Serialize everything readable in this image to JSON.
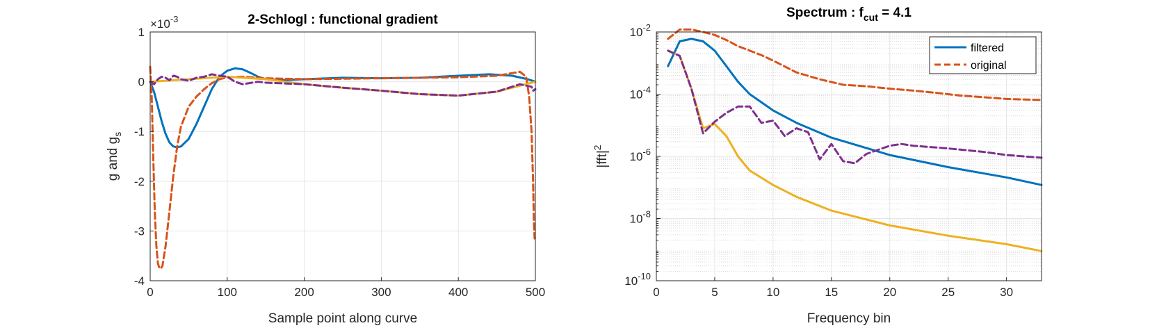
{
  "chart_data": [
    {
      "type": "line",
      "title": "2-Schlogl : functional gradient",
      "xlabel": "Sample point along curve",
      "ylabel_main": "g and g",
      "ylabel_sub": "s",
      "exponent_base": "×10",
      "exponent_power": "-3",
      "xlim": [
        0,
        500
      ],
      "ylim": [
        -4,
        1
      ],
      "xticks": [
        0,
        100,
        200,
        300,
        400,
        500
      ],
      "xtick_labels": [
        "0",
        "100",
        "200",
        "300",
        "400",
        "500"
      ],
      "yticks": [
        -4,
        -3,
        -2,
        -1,
        0,
        1
      ],
      "ytick_labels": [
        "-4",
        "-3",
        "-2",
        "-1",
        "0",
        "1"
      ],
      "grid": true,
      "colors": {
        "blue": "#0072BD",
        "orange": "#D95319",
        "yellow": "#EDB120",
        "purple": "#7E2F8E"
      },
      "series": [
        {
          "style": "solid",
          "color": "#0072BD",
          "x": [
            0,
            5,
            10,
            15,
            20,
            25,
            30,
            35,
            40,
            50,
            60,
            70,
            80,
            90,
            100,
            110,
            120,
            130,
            140,
            150,
            170,
            200,
            250,
            300,
            350,
            400,
            440,
            470,
            490,
            500
          ],
          "y": [
            0,
            -0.2,
            -0.5,
            -0.8,
            -1.05,
            -1.22,
            -1.3,
            -1.32,
            -1.3,
            -1.15,
            -0.85,
            -0.5,
            -0.15,
            0.1,
            0.22,
            0.27,
            0.25,
            0.18,
            0.1,
            0.05,
            0.03,
            0.05,
            0.08,
            0.07,
            0.08,
            0.12,
            0.15,
            0.12,
            0.05,
            0
          ]
        },
        {
          "style": "dashed",
          "color": "#D95319",
          "x": [
            0,
            2,
            4,
            6,
            8,
            10,
            12,
            14,
            16,
            18,
            20,
            25,
            30,
            35,
            40,
            50,
            60,
            70,
            80,
            90,
            100,
            120,
            150,
            200,
            250,
            300,
            350,
            400,
            450,
            480,
            488,
            492,
            495,
            497,
            498,
            499,
            500
          ],
          "y": [
            0.3,
            -0.3,
            -1.5,
            -2.6,
            -3.3,
            -3.65,
            -3.75,
            -3.75,
            -3.7,
            -3.5,
            -3.3,
            -2.6,
            -1.9,
            -1.3,
            -0.9,
            -0.5,
            -0.3,
            -0.15,
            -0.03,
            0.05,
            0.09,
            0.1,
            0.07,
            0.05,
            0.06,
            0.07,
            0.08,
            0.09,
            0.12,
            0.2,
            0.1,
            -0.3,
            -1.0,
            -2.0,
            -2.8,
            -3.15,
            -3.1
          ]
        },
        {
          "style": "solid",
          "color": "#EDB120",
          "x": [
            0,
            50,
            100,
            150,
            200,
            250,
            300,
            350,
            400,
            450,
            480,
            500
          ],
          "y": [
            0,
            0.05,
            0.1,
            0.05,
            -0.05,
            -0.12,
            -0.18,
            -0.25,
            -0.28,
            -0.2,
            -0.08,
            0
          ]
        },
        {
          "style": "dashed",
          "color": "#7E2F8E",
          "x": [
            0,
            5,
            10,
            15,
            20,
            25,
            30,
            35,
            40,
            50,
            60,
            70,
            80,
            90,
            100,
            110,
            120,
            140,
            150,
            200,
            250,
            300,
            350,
            400,
            450,
            480,
            495,
            497,
            500
          ],
          "y": [
            0,
            -0.05,
            0.05,
            0.1,
            0.08,
            0.03,
            0.12,
            0.1,
            0.05,
            0.02,
            0.08,
            0.1,
            0.15,
            0.12,
            0.1,
            0,
            -0.05,
            0,
            -0.02,
            -0.05,
            -0.12,
            -0.18,
            -0.25,
            -0.28,
            -0.2,
            -0.05,
            -0.1,
            -0.18,
            -0.15
          ]
        }
      ]
    },
    {
      "type": "line",
      "title_main": "Spectrum : f",
      "title_sub": "cut",
      "title_tail": " = 4.1",
      "xlabel": "Frequency bin",
      "ylabel_main": "|fft|",
      "ylabel_sup": "2",
      "yscale": "log",
      "xlim": [
        0,
        33
      ],
      "ylim_exponent": [
        -10,
        -2
      ],
      "xticks": [
        0,
        5,
        10,
        15,
        20,
        25,
        30
      ],
      "xtick_labels": [
        "0",
        "5",
        "10",
        "15",
        "20",
        "25",
        "30"
      ],
      "ytick_exponents": [
        -10,
        -8,
        -6,
        -4,
        -2
      ],
      "ytick_exponent_labels": [
        "-10",
        "-8",
        "-6",
        "-4",
        "-2"
      ],
      "ytick_base": "10",
      "grid": true,
      "legend_position": "top-right",
      "legend": [
        {
          "name": "filtered",
          "style": "solid",
          "color": "#0072BD"
        },
        {
          "name": "original",
          "style": "dashed",
          "color": "#D95319"
        }
      ],
      "series": [
        {
          "style": "solid",
          "color": "#0072BD",
          "x": [
            1,
            2,
            3,
            4,
            5,
            6,
            7,
            8,
            10,
            12,
            15,
            20,
            25,
            30,
            33
          ],
          "y": [
            0.0008,
            0.005,
            0.006,
            0.005,
            0.0025,
            0.0008,
            0.00025,
            0.0001,
            3e-05,
            1.2e-05,
            4e-06,
            1.1e-06,
            4.5e-07,
            2.1e-07,
            1.2e-07
          ]
        },
        {
          "style": "dashed",
          "color": "#D95319",
          "x": [
            1,
            2,
            3,
            4,
            5,
            6,
            7,
            8,
            9,
            10,
            12,
            14,
            16,
            18,
            20,
            22,
            24,
            26,
            28,
            30,
            33
          ],
          "y": [
            0.006,
            0.012,
            0.012,
            0.01,
            0.008,
            0.0055,
            0.0035,
            0.0025,
            0.0018,
            0.0012,
            0.0005,
            0.0003,
            0.0002,
            0.00018,
            0.00015,
            0.00013,
            0.00011,
            9e-05,
            8e-05,
            7e-05,
            6.5e-05
          ]
        },
        {
          "style": "solid",
          "color": "#EDB120",
          "x": [
            1,
            2,
            3,
            4,
            5,
            6,
            7,
            8,
            10,
            12,
            15,
            20,
            25,
            30,
            33
          ],
          "y": [
            0.0025,
            0.0017,
            0.00015,
            8e-06,
            1.1e-05,
            4.5e-06,
            1e-06,
            3.5e-07,
            1.2e-07,
            5e-08,
            1.8e-08,
            6e-09,
            2.8e-09,
            1.5e-09,
            9e-10
          ]
        },
        {
          "style": "dashed",
          "color": "#7E2F8E",
          "x": [
            1,
            2,
            3,
            4,
            5,
            6,
            7,
            8,
            9,
            10,
            11,
            12,
            13,
            14,
            15,
            16,
            17,
            18,
            20,
            21,
            22,
            25,
            28,
            30,
            33
          ],
          "y": [
            0.0025,
            0.0017,
            0.00015,
            5.5e-06,
            1.3e-05,
            2.5e-05,
            4e-05,
            4e-05,
            1.2e-05,
            1.4e-05,
            4.5e-06,
            8e-06,
            6e-06,
            8e-07,
            2.5e-06,
            7e-07,
            6e-07,
            1.2e-06,
            2.2e-06,
            2.5e-06,
            2.2e-06,
            1.8e-06,
            1.4e-06,
            1.1e-06,
            9e-07
          ]
        }
      ]
    }
  ]
}
